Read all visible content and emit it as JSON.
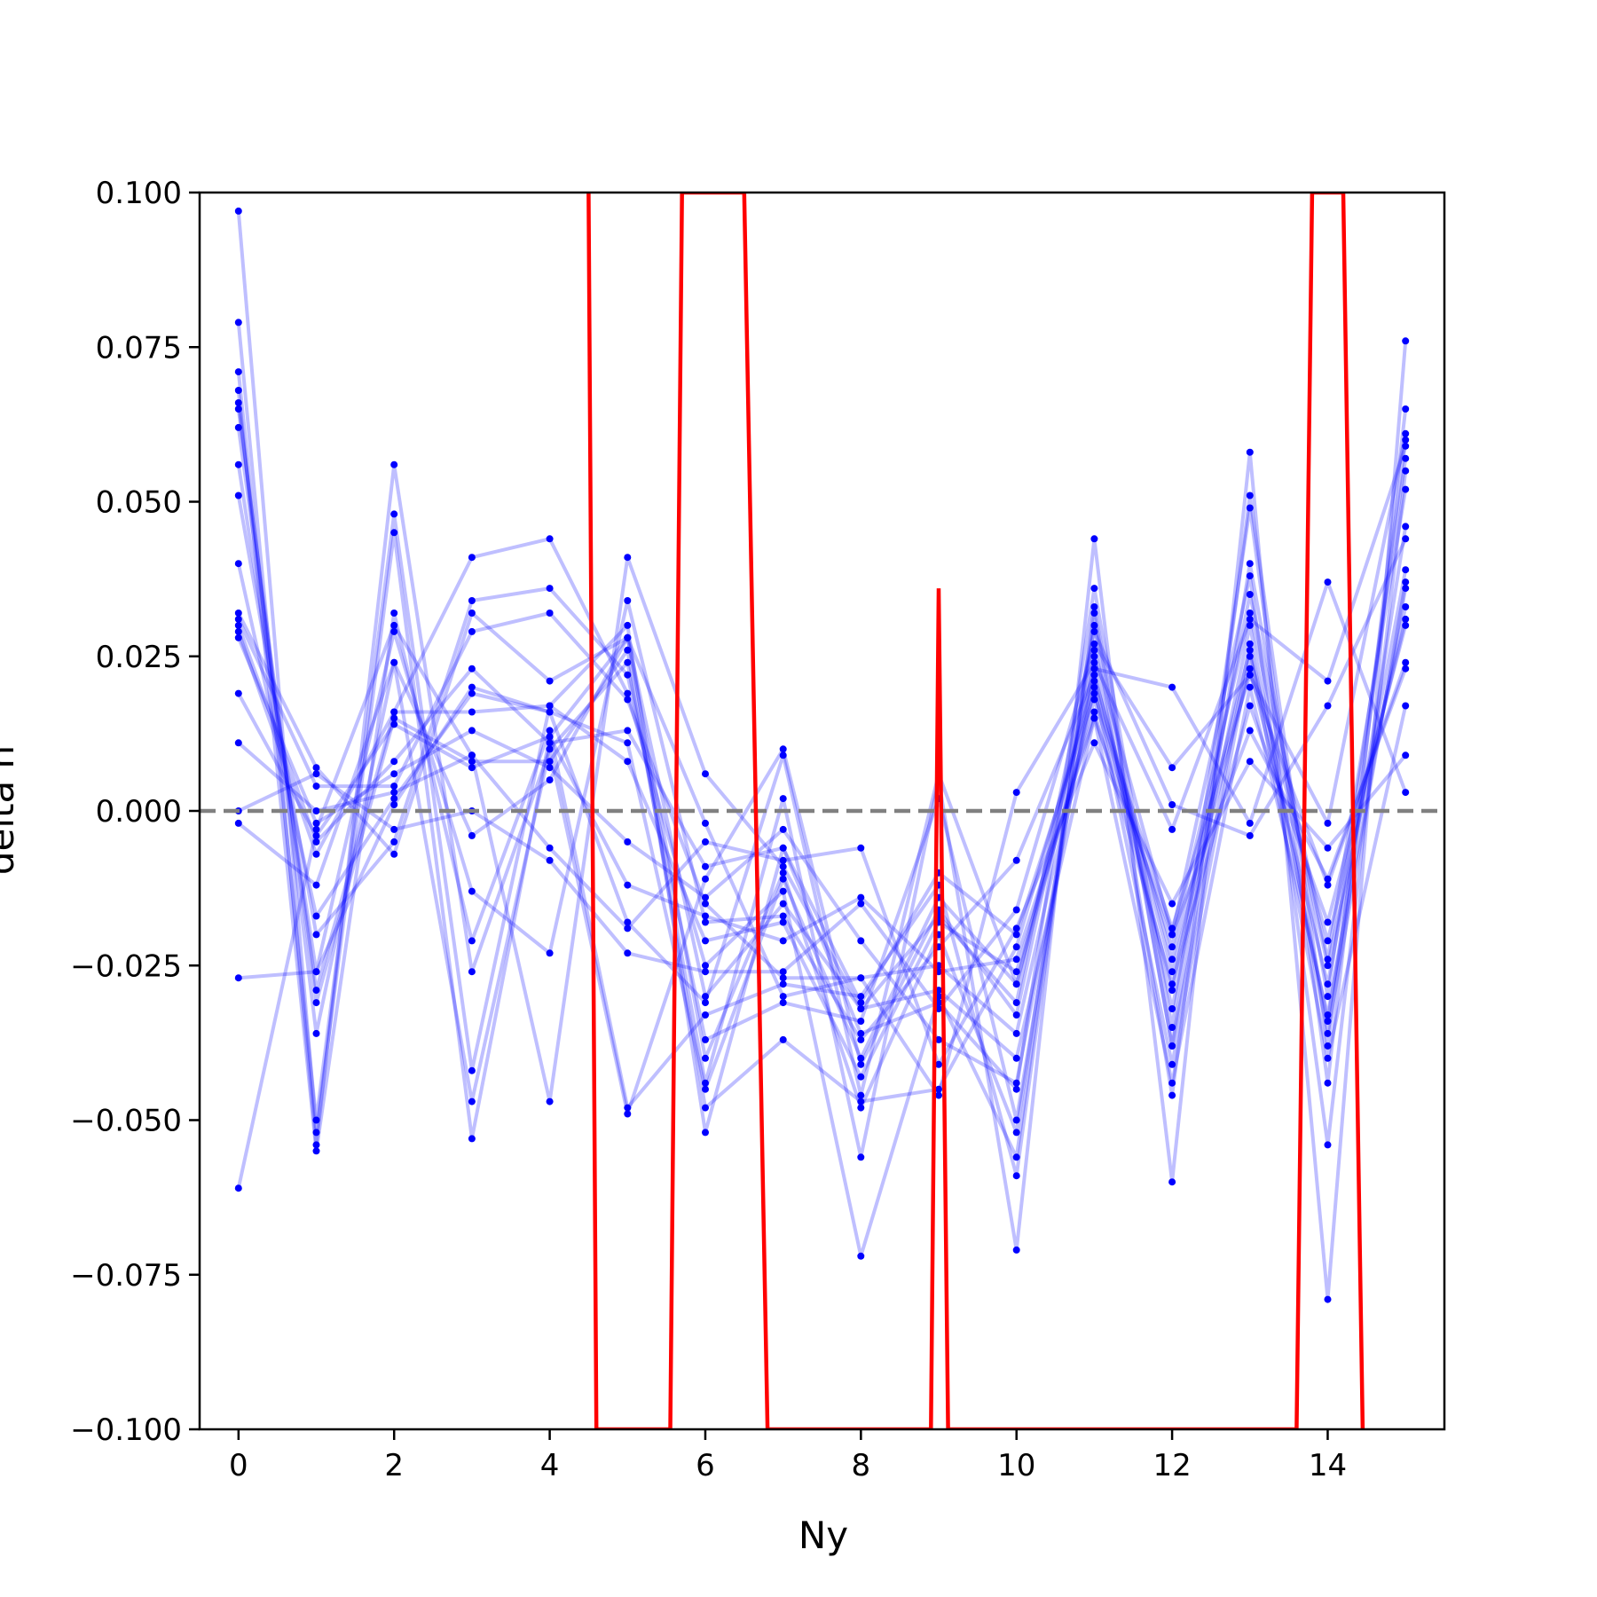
{
  "chart_data": {
    "type": "line",
    "title": "",
    "xlabel": "Ny",
    "ylabel": "delta n",
    "xlim": [
      -0.5,
      15.5
    ],
    "ylim": [
      -0.1,
      0.1
    ],
    "x_ticks": [
      0,
      2,
      4,
      6,
      8,
      10,
      12,
      14
    ],
    "x_tick_labels": [
      "0",
      "2",
      "4",
      "6",
      "8",
      "10",
      "12",
      "14"
    ],
    "y_ticks": [
      -0.1,
      -0.075,
      -0.05,
      -0.025,
      0.0,
      0.025,
      0.05,
      0.075,
      0.1
    ],
    "y_tick_labels": [
      "−0.100",
      "−0.075",
      "−0.050",
      "−0.025",
      "0.000",
      "0.025",
      "0.050",
      "0.075",
      "0.100"
    ],
    "reference_line": {
      "y": 0.0,
      "style": "dashed",
      "color": "#808080"
    },
    "colors": {
      "series": "#0000ff",
      "mean": "#ff0000"
    },
    "grid": false,
    "legend": "none",
    "x": [
      0,
      1,
      2,
      3,
      4,
      5,
      6,
      7,
      8,
      9,
      10,
      11,
      12,
      13,
      14,
      15
    ],
    "series": [
      {
        "values": [
          0.097,
          -0.052,
          0.045,
          -0.053,
          0.012,
          0.028,
          -0.04,
          -0.01,
          -0.048,
          -0.02,
          -0.052,
          0.03,
          -0.046,
          0.051,
          -0.038,
          0.06
        ]
      },
      {
        "values": [
          0.079,
          -0.054,
          0.056,
          -0.026,
          0.01,
          0.024,
          -0.044,
          0.002,
          -0.056,
          0.005,
          -0.071,
          0.044,
          -0.06,
          0.058,
          -0.079,
          0.076
        ]
      },
      {
        "values": [
          0.071,
          -0.05,
          0.048,
          -0.042,
          0.017,
          0.03,
          -0.052,
          -0.006,
          -0.036,
          -0.031,
          -0.045,
          0.036,
          -0.035,
          0.049,
          -0.044,
          0.065
        ]
      },
      {
        "values": [
          0.068,
          -0.055,
          0.032,
          -0.021,
          0.013,
          -0.048,
          -0.033,
          -0.028,
          -0.03,
          -0.012,
          -0.059,
          0.033,
          -0.038,
          0.04,
          -0.03,
          0.057
        ]
      },
      {
        "values": [
          0.066,
          -0.036,
          0.024,
          -0.047,
          0.01,
          -0.049,
          -0.011,
          0.01,
          -0.041,
          -0.016,
          -0.033,
          0.026,
          -0.02,
          0.038,
          -0.054,
          0.055
        ]
      },
      {
        "values": [
          0.065,
          -0.031,
          0.015,
          0.008,
          0.008,
          0.026,
          -0.048,
          -0.037,
          -0.047,
          -0.045,
          -0.022,
          0.021,
          -0.029,
          0.035,
          -0.024,
          0.052
        ]
      },
      {
        "values": [
          0.062,
          -0.029,
          0.016,
          0.041,
          0.044,
          0.019,
          -0.025,
          -0.013,
          -0.072,
          -0.03,
          -0.056,
          0.032,
          -0.038,
          0.027,
          -0.034,
          0.046
        ]
      },
      {
        "values": [
          0.056,
          -0.026,
          0.029,
          -0.013,
          -0.023,
          0.034,
          -0.018,
          -0.017,
          -0.037,
          -0.022,
          -0.008,
          0.022,
          -0.026,
          0.023,
          -0.028,
          0.039
        ]
      },
      {
        "values": [
          0.051,
          -0.02,
          -0.005,
          0.034,
          0.036,
          0.022,
          -0.037,
          -0.031,
          -0.034,
          0.002,
          -0.05,
          0.025,
          -0.032,
          0.03,
          -0.036,
          0.037
        ]
      },
      {
        "values": [
          0.04,
          -0.017,
          0.002,
          0.019,
          0.016,
          0.011,
          -0.045,
          -0.011,
          -0.04,
          -0.014,
          -0.028,
          0.018,
          -0.022,
          0.032,
          -0.025,
          0.033
        ]
      },
      {
        "values": [
          0.032,
          0.007,
          -0.007,
          0.032,
          0.021,
          0.028,
          -0.03,
          -0.015,
          -0.032,
          -0.029,
          -0.04,
          0.015,
          -0.044,
          0.02,
          -0.033,
          0.036
        ]
      },
      {
        "values": [
          0.031,
          0.004,
          0.004,
          0.029,
          0.032,
          0.018,
          -0.015,
          -0.027,
          -0.027,
          -0.025,
          -0.036,
          0.02,
          -0.041,
          0.025,
          -0.021,
          0.031
        ]
      },
      {
        "values": [
          0.03,
          -0.005,
          0.008,
          0.023,
          0.011,
          0.013,
          -0.009,
          -0.006,
          -0.031,
          -0.01,
          -0.02,
          0.019,
          -0.019,
          0.022,
          -0.012,
          0.024
        ]
      },
      {
        "values": [
          0.029,
          -0.007,
          0.016,
          0.016,
          0.017,
          0.008,
          -0.021,
          -0.018,
          -0.043,
          -0.018,
          -0.026,
          0.016,
          -0.028,
          0.017,
          -0.018,
          0.03
        ]
      },
      {
        "values": [
          0.028,
          -0.002,
          0.006,
          0.013,
          0.007,
          -0.005,
          -0.014,
          -0.003,
          -0.021,
          -0.037,
          -0.044,
          0.022,
          -0.024,
          0.026,
          -0.04,
          0.017
        ]
      },
      {
        "values": [
          0.019,
          -0.004,
          0.014,
          0.007,
          0.012,
          -0.012,
          -0.017,
          -0.021,
          -0.014,
          -0.026,
          -0.024,
          0.015,
          -0.02,
          0.013,
          -0.011,
          0.023
        ]
      },
      {
        "values": [
          0.011,
          0.0,
          0.003,
          0.009,
          -0.006,
          -0.019,
          -0.005,
          -0.008,
          -0.006,
          -0.041,
          -0.019,
          0.011,
          -0.015,
          0.008,
          -0.006,
          0.009
        ]
      },
      {
        "values": [
          0.0,
          0.006,
          -0.003,
          0.0,
          -0.008,
          -0.023,
          -0.026,
          -0.026,
          -0.015,
          -0.032,
          -0.016,
          0.027,
          0.007,
          0.022,
          -0.002,
          0.061
        ]
      },
      {
        "values": [
          -0.002,
          -0.012,
          0.024,
          -0.004,
          0.005,
          0.028,
          -0.002,
          -0.03,
          -0.027,
          -0.046,
          0.003,
          0.024,
          -0.003,
          0.031,
          0.021,
          0.059
        ]
      },
      {
        "values": [
          -0.027,
          -0.026,
          0.001,
          0.02,
          0.016,
          -0.018,
          -0.031,
          0.009,
          -0.046,
          0.006,
          -0.028,
          0.023,
          0.02,
          -0.002,
          0.037,
          0.003
        ]
      },
      {
        "values": [
          -0.061,
          -0.003,
          0.03,
          0.009,
          -0.047,
          0.041,
          0.006,
          -0.009,
          -0.032,
          -0.017,
          -0.031,
          0.029,
          0.001,
          -0.004,
          0.017,
          0.044
        ]
      }
    ],
    "mean_series": {
      "x": [
        4.5,
        4.6,
        5.55,
        5.7,
        6.5,
        6.8,
        8.9,
        9.0,
        9.12,
        13.6,
        13.8,
        14.2,
        14.45
      ],
      "values": [
        0.1,
        -0.1,
        -0.1,
        0.1,
        0.1,
        -0.1,
        -0.1,
        0.036,
        -0.1,
        -0.1,
        0.1,
        0.1,
        -0.1
      ]
    }
  }
}
